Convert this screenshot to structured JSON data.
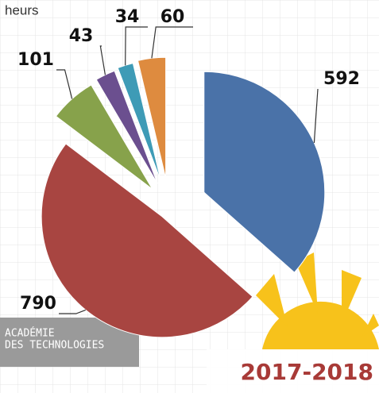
{
  "chart_data": {
    "type": "pie",
    "subtitle": "heurs",
    "categories": [
      null,
      null,
      null,
      null,
      null,
      null
    ],
    "values": [
      592,
      790,
      101,
      43,
      34,
      60
    ],
    "colors": [
      "#4a72a8",
      "#a84541",
      "#87a24b",
      "#6b4f8f",
      "#3e9bb6",
      "#de8b3f"
    ],
    "footer": "2017-2018",
    "logo": {
      "line1": "ACADÉMIE",
      "line2": "DES TECHNOLOGIES"
    }
  }
}
